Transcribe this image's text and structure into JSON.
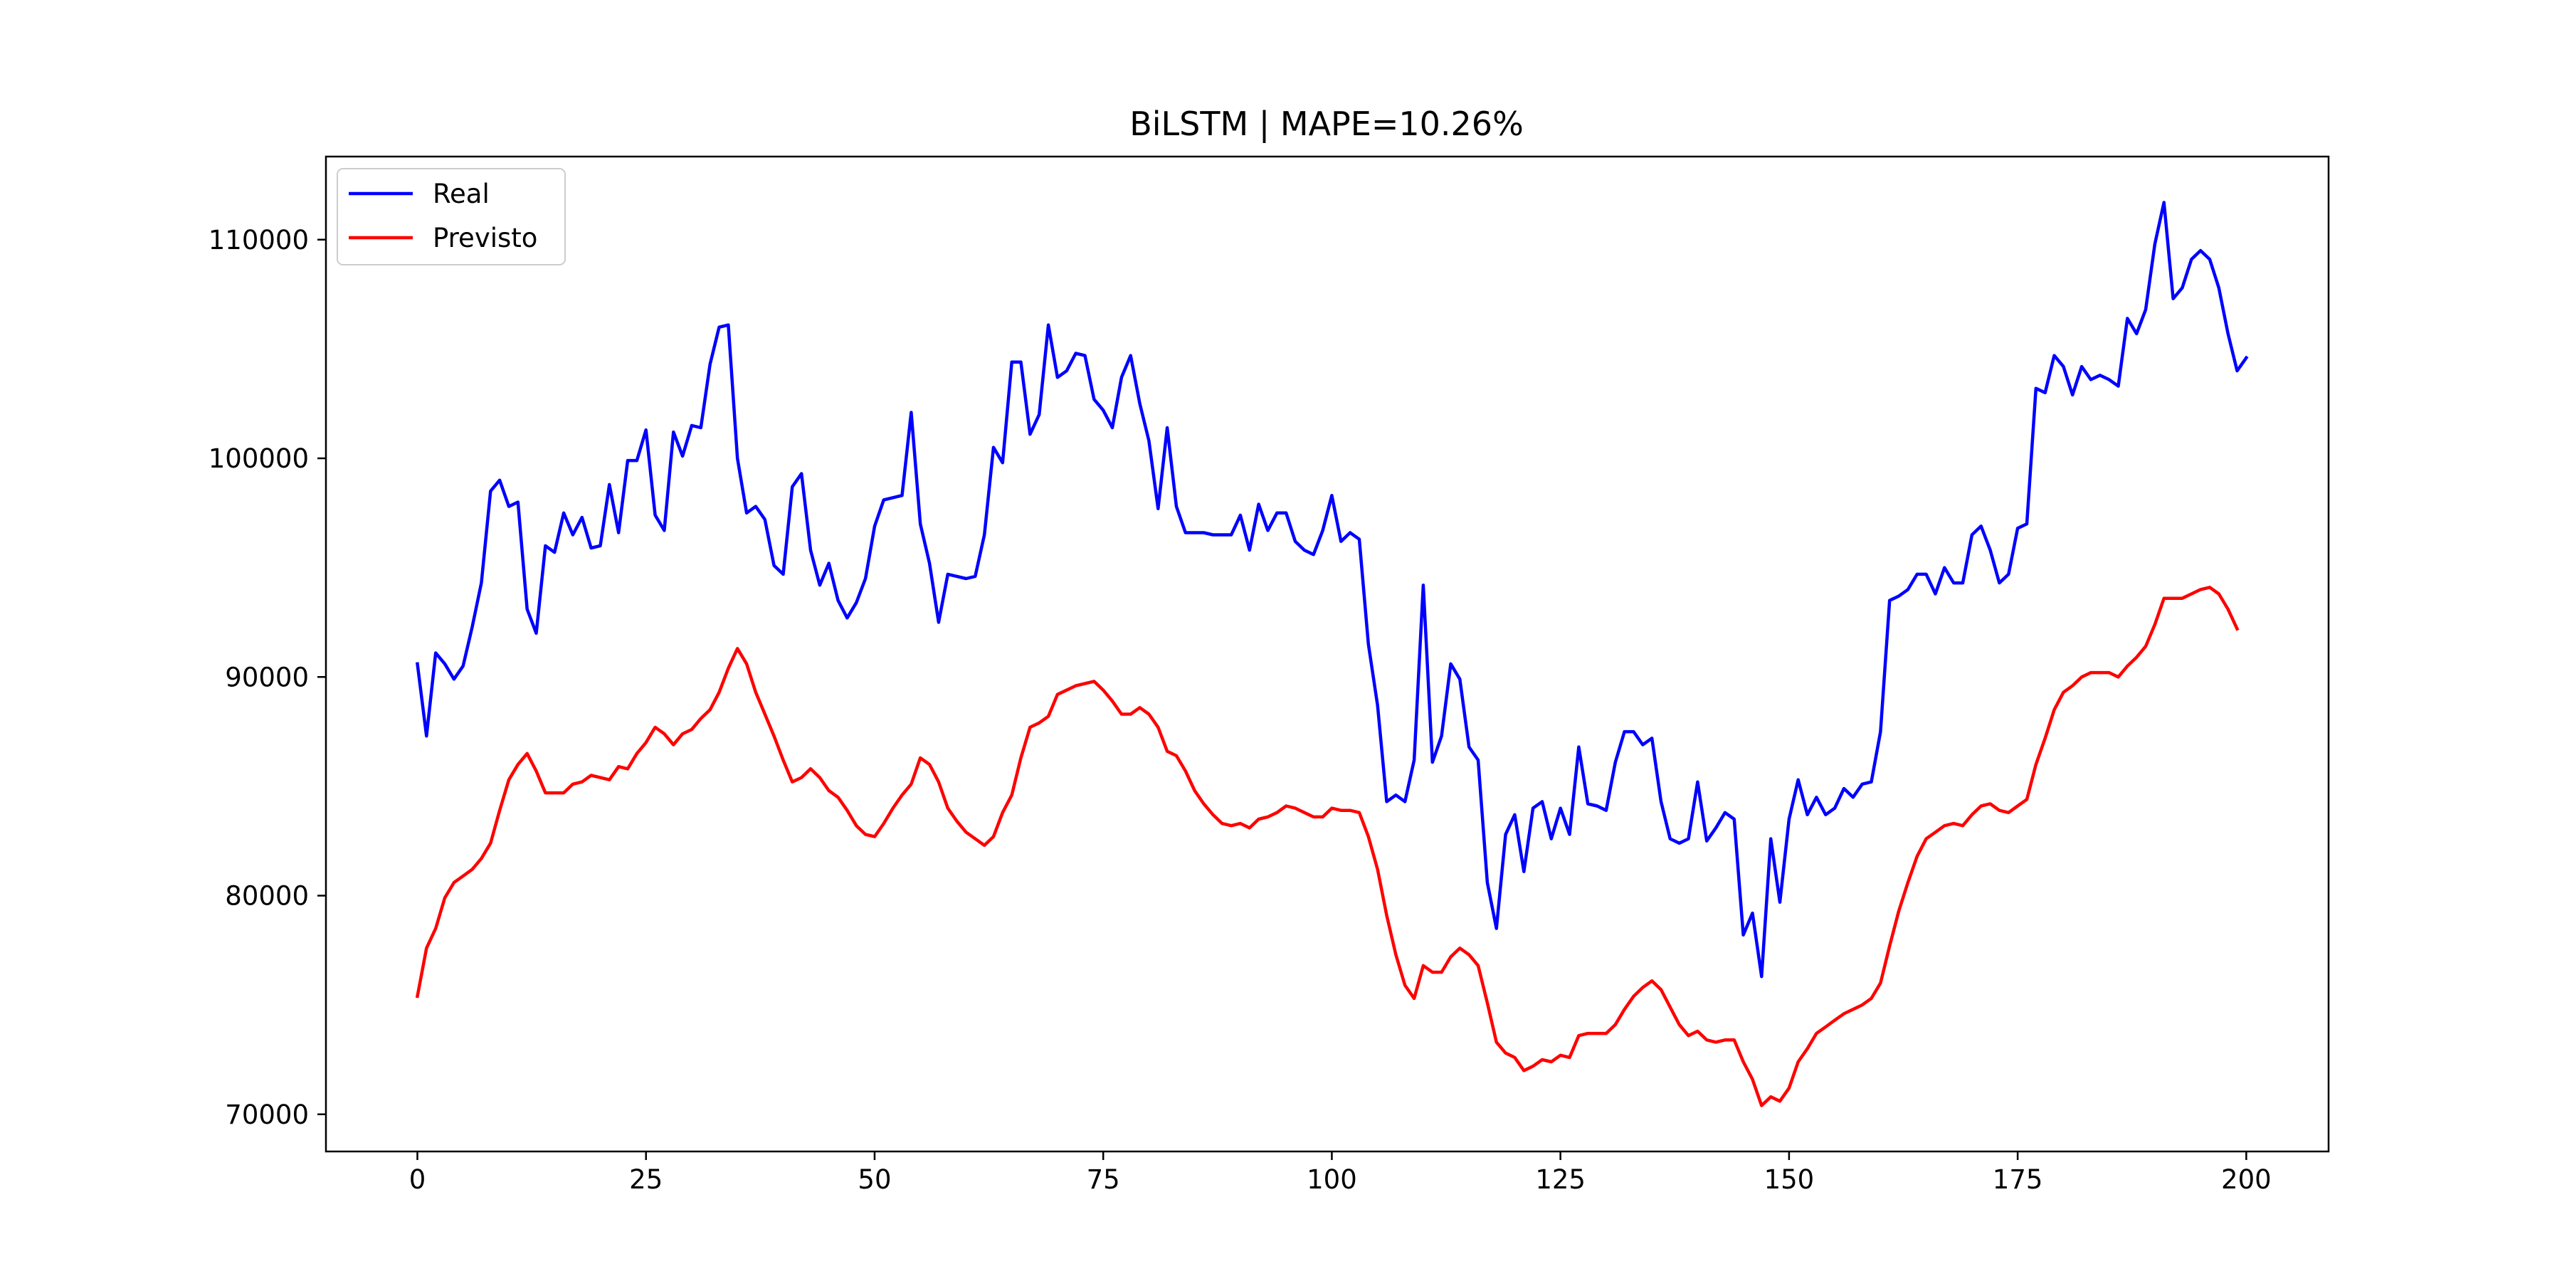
{
  "chart_data": {
    "type": "line",
    "title": "BiLSTM | MAPE=10.26%",
    "xlabel": "",
    "ylabel": "",
    "xlim": [
      -10,
      209
    ],
    "ylim": [
      68300,
      113800
    ],
    "xticks": [
      0,
      25,
      50,
      75,
      100,
      125,
      150,
      175,
      200
    ],
    "yticks": [
      70000,
      80000,
      90000,
      100000,
      110000
    ],
    "grid": false,
    "legend_position": "top-left",
    "series": [
      {
        "name": "Real",
        "color": "#0000ff",
        "values": [
          90600,
          87300,
          91100,
          90600,
          89900,
          90500,
          92300,
          94300,
          98500,
          99000,
          97800,
          98000,
          93100,
          92000,
          96000,
          95700,
          97500,
          96500,
          97300,
          95900,
          96000,
          98800,
          96600,
          99900,
          99900,
          101300,
          97400,
          96700,
          101200,
          100100,
          101500,
          101400,
          104300,
          106000,
          106100,
          100000,
          97500,
          97800,
          97200,
          95100,
          94700,
          98700,
          99300,
          95800,
          94200,
          95200,
          93500,
          92700,
          93400,
          94500,
          96900,
          98100,
          98200,
          98300,
          102100,
          97000,
          95200,
          92500,
          94700,
          94600,
          94500,
          94600,
          96500,
          100500,
          99800,
          104400,
          104400,
          101100,
          102000,
          106100,
          103700,
          104000,
          104800,
          104700,
          102700,
          102200,
          101400,
          103700,
          104700,
          102500,
          100800,
          97700,
          101400,
          97800,
          96600,
          96600,
          96600,
          96500,
          96500,
          96500,
          97400,
          95800,
          97900,
          96700,
          97500,
          97500,
          96200,
          95800,
          95600,
          96700,
          98300,
          96200,
          96600,
          96300,
          91500,
          88700,
          84300,
          84600,
          84300,
          86200,
          94200,
          86100,
          87300,
          90600,
          89900,
          86800,
          86200,
          80600,
          78500,
          82800,
          83700,
          81100,
          84000,
          84300,
          82600,
          84000,
          82800,
          86800,
          84200,
          84100,
          83900,
          86100,
          87500,
          87500,
          86900,
          87200,
          84300,
          82600,
          82400,
          82600,
          85200,
          82500,
          83100,
          83800,
          83500,
          78200,
          79200,
          76300,
          82600,
          79700,
          83500,
          85300,
          83700,
          84500,
          83700,
          84000,
          84900,
          84500,
          85100,
          85200,
          87500,
          93500,
          93700,
          94000,
          94700,
          94700,
          93800,
          95000,
          94300,
          94300,
          96500,
          96900,
          95800,
          94300,
          94700,
          96800,
          97000,
          103200,
          103000,
          104700,
          104200,
          102900,
          104200,
          103600,
          103800,
          103600,
          103300,
          106400,
          105700,
          106800,
          109800,
          111700,
          107300,
          107800,
          109100,
          109500,
          109100,
          107800,
          105700,
          104000,
          104600
        ]
      },
      {
        "name": "Previsto",
        "color": "#ff0000",
        "values": [
          75400,
          77600,
          78500,
          79900,
          80600,
          80900,
          81200,
          81700,
          82400,
          83900,
          85300,
          86000,
          86500,
          85700,
          84700,
          84700,
          84700,
          85100,
          85200,
          85500,
          85400,
          85300,
          85900,
          85800,
          86500,
          87000,
          87700,
          87400,
          86900,
          87400,
          87600,
          88100,
          88500,
          89300,
          90400,
          91300,
          90600,
          89300,
          88300,
          87300,
          86200,
          85200,
          85400,
          85800,
          85400,
          84800,
          84500,
          83900,
          83200,
          82800,
          82700,
          83300,
          84000,
          84600,
          85100,
          86300,
          86000,
          85200,
          84000,
          83400,
          82900,
          82600,
          82300,
          82700,
          83800,
          84600,
          86300,
          87700,
          87900,
          88200,
          89200,
          89400,
          89600,
          89700,
          89800,
          89400,
          88900,
          88300,
          88300,
          88600,
          88300,
          87700,
          86600,
          86400,
          85700,
          84800,
          84200,
          83700,
          83300,
          83200,
          83300,
          83100,
          83500,
          83600,
          83800,
          84100,
          84000,
          83800,
          83600,
          83600,
          84000,
          83900,
          83900,
          83800,
          82700,
          81200,
          79100,
          77300,
          75900,
          75300,
          76800,
          76500,
          76500,
          77200,
          77600,
          77300,
          76800,
          75100,
          73300,
          72800,
          72600,
          72000,
          72200,
          72500,
          72400,
          72700,
          72600,
          73600,
          73700,
          73700,
          73700,
          74100,
          74800,
          75400,
          75800,
          76100,
          75700,
          74900,
          74100,
          73600,
          73800,
          73400,
          73300,
          73400,
          73400,
          72400,
          71600,
          70400,
          70800,
          70600,
          71200,
          72400,
          73000,
          73700,
          74000,
          74300,
          74600,
          74800,
          75000,
          75300,
          76000,
          77700,
          79300,
          80600,
          81800,
          82600,
          82900,
          83200,
          83300,
          83200,
          83700,
          84100,
          84200,
          83900,
          83800,
          84100,
          84400,
          86000,
          87200,
          88500,
          89300,
          89600,
          90000,
          90200,
          90200,
          90200,
          90000,
          90500,
          90900,
          91400,
          92400,
          93600,
          93600,
          93600,
          93800,
          94000,
          94100,
          93800,
          93100,
          92200
        ]
      }
    ]
  }
}
